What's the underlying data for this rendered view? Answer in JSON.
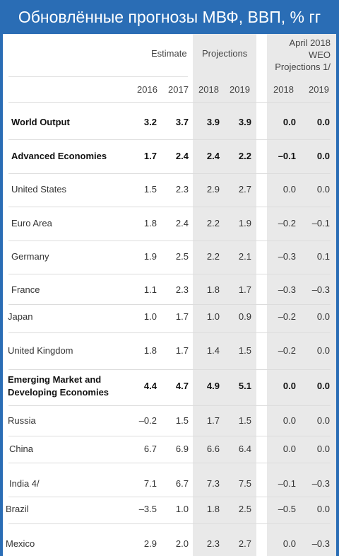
{
  "title": "Обновлённые прогнозы МВФ, ВВП, % гг",
  "headers": {
    "estimate": "Estimate",
    "projections": "Projections",
    "weo_line1": "April 2018",
    "weo_line2": "WEO",
    "weo_line3": "Projections 1/",
    "years": [
      "2016",
      "2017",
      "2018",
      "2019",
      "2018",
      "2019"
    ]
  },
  "colors": {
    "title_bar": "#2a6db5",
    "shade": "#e9e9e9",
    "text": "#333333"
  },
  "chart_data": {
    "type": "table",
    "title": "Обновлённые прогнозы МВФ, ВВП, % гг",
    "columns": [
      "2016",
      "2017",
      "2018",
      "2019",
      "2018",
      "2019"
    ],
    "column_groups": [
      "Estimate",
      "Estimate",
      "Projections",
      "Projections",
      "April 2018 WEO Projections 1/",
      "April 2018 WEO Projections 1/"
    ],
    "rows": [
      {
        "label": "World Output",
        "bold": true,
        "values": [
          "3.2",
          "3.7",
          "3.9",
          "3.9",
          "0.0",
          "0.0"
        ]
      },
      {
        "label": "Advanced Economies",
        "bold": true,
        "values": [
          "1.7",
          "2.4",
          "2.4",
          "2.2",
          "–0.1",
          "0.0"
        ]
      },
      {
        "label": "United States",
        "bold": false,
        "values": [
          "1.5",
          "2.3",
          "2.9",
          "2.7",
          "0.0",
          "0.0"
        ]
      },
      {
        "label": "Euro Area",
        "bold": false,
        "values": [
          "1.8",
          "2.4",
          "2.2",
          "1.9",
          "–0.2",
          "–0.1"
        ]
      },
      {
        "label": "Germany",
        "bold": false,
        "values": [
          "1.9",
          "2.5",
          "2.2",
          "2.1",
          "–0.3",
          "0.1"
        ]
      },
      {
        "label": "France",
        "bold": false,
        "values": [
          "1.1",
          "2.3",
          "1.8",
          "1.7",
          "–0.3",
          "–0.3"
        ]
      },
      {
        "label": "Japan",
        "bold": false,
        "values": [
          "1.0",
          "1.7",
          "1.0",
          "0.9",
          "–0.2",
          "0.0"
        ]
      },
      {
        "label": "United Kingdom",
        "bold": false,
        "values": [
          "1.8",
          "1.7",
          "1.4",
          "1.5",
          "–0.2",
          "0.0"
        ]
      },
      {
        "label": "Emerging Market and",
        "label2": "Developing Economies",
        "bold": true,
        "values": [
          "4.4",
          "4.7",
          "4.9",
          "5.1",
          "0.0",
          "0.0"
        ]
      },
      {
        "label": "Russia",
        "bold": false,
        "values": [
          "–0.2",
          "1.5",
          "1.7",
          "1.5",
          "0.0",
          "0.0"
        ]
      },
      {
        "label": "China",
        "bold": false,
        "values": [
          "6.7",
          "6.9",
          "6.6",
          "6.4",
          "0.0",
          "0.0"
        ]
      },
      {
        "label": "India 4/",
        "bold": false,
        "values": [
          "7.1",
          "6.7",
          "7.3",
          "7.5",
          "–0.1",
          "–0.3"
        ]
      },
      {
        "label": "Brazil",
        "bold": false,
        "values": [
          "–3.5",
          "1.0",
          "1.8",
          "2.5",
          "–0.5",
          "0.0"
        ]
      },
      {
        "label": "Mexico",
        "bold": false,
        "values": [
          "2.9",
          "2.0",
          "2.3",
          "2.7",
          "0.0",
          "–0.3"
        ]
      }
    ]
  }
}
